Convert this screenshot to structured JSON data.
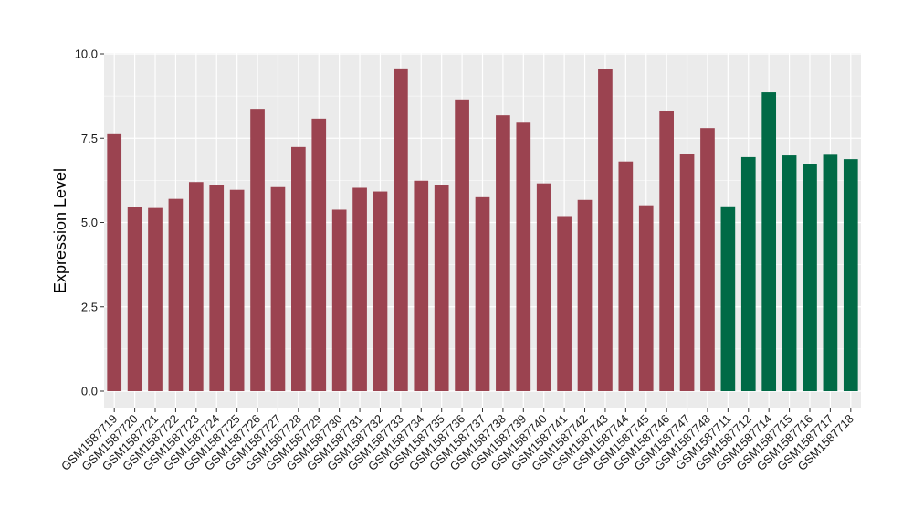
{
  "chart_data": {
    "type": "bar",
    "title": "",
    "xlabel": "",
    "ylabel": "Expression Level",
    "ylim": [
      0,
      10
    ],
    "yticks": [
      "0.0",
      "2.5",
      "5.0",
      "7.5",
      "10.0"
    ],
    "grid": true,
    "legend": "none",
    "categories": [
      "GSM1587719",
      "GSM1587720",
      "GSM1587721",
      "GSM1587722",
      "GSM1587723",
      "GSM1587724",
      "GSM1587725",
      "GSM1587726",
      "GSM1587727",
      "GSM1587728",
      "GSM1587729",
      "GSM1587730",
      "GSM1587731",
      "GSM1587732",
      "GSM1587733",
      "GSM1587734",
      "GSM1587735",
      "GSM1587736",
      "GSM1587737",
      "GSM1587738",
      "GSM1587739",
      "GSM1587740",
      "GSM1587741",
      "GSM1587742",
      "GSM1587743",
      "GSM1587744",
      "GSM1587745",
      "GSM1587746",
      "GSM1587747",
      "GSM1587748",
      "GSM1587711",
      "GSM1587712",
      "GSM1587714",
      "GSM1587715",
      "GSM1587716",
      "GSM1587717",
      "GSM1587718"
    ],
    "values": [
      7.62,
      5.45,
      5.43,
      5.7,
      6.2,
      6.1,
      5.97,
      8.37,
      6.05,
      7.24,
      8.08,
      5.38,
      6.03,
      5.92,
      9.57,
      6.24,
      6.1,
      8.65,
      5.75,
      8.18,
      7.96,
      6.16,
      5.19,
      5.67,
      9.54,
      6.81,
      5.51,
      8.32,
      7.02,
      7.8,
      5.48,
      6.94,
      8.86,
      6.99,
      6.73,
      7.01,
      6.88
    ],
    "groups": [
      "a",
      "a",
      "a",
      "a",
      "a",
      "a",
      "a",
      "a",
      "a",
      "a",
      "a",
      "a",
      "a",
      "a",
      "a",
      "a",
      "a",
      "a",
      "a",
      "a",
      "a",
      "a",
      "a",
      "a",
      "a",
      "a",
      "a",
      "a",
      "a",
      "a",
      "b",
      "b",
      "b",
      "b",
      "b",
      "b",
      "b"
    ],
    "colors": {
      "a": "#9b4350",
      "b": "#006a46"
    },
    "panel_background": "#ebebeb",
    "grid_color": "#ffffff"
  }
}
